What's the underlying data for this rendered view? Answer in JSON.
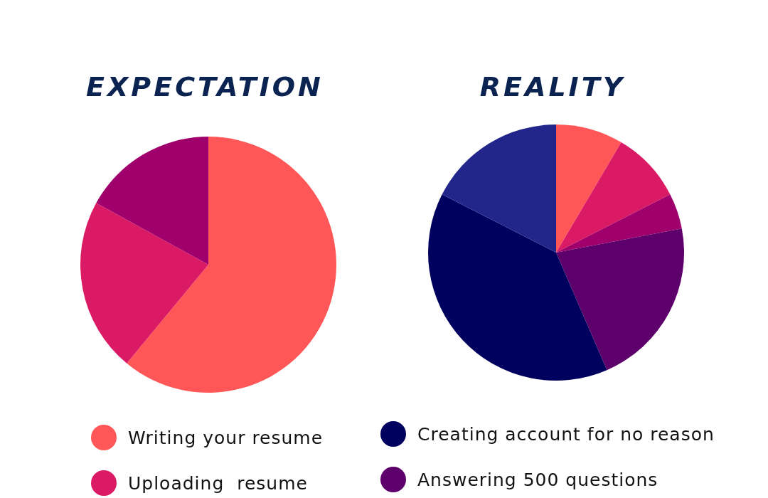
{
  "chart_data": [
    {
      "type": "pie",
      "title": "EXPECTATION",
      "categories": [
        "Writing your resume",
        "Uploading  resume",
        null
      ],
      "values": [
        61,
        22,
        17
      ],
      "colors": [
        "#ff5757",
        "#db1a66",
        "#a0006b"
      ],
      "legend": "bottom"
    },
    {
      "type": "pie",
      "title": "REALITY",
      "categories": [
        null,
        null,
        null,
        "Answering 500 questions",
        "Creating account for no reason",
        null
      ],
      "values": [
        8.5,
        9,
        4.5,
        21.5,
        39,
        17.5
      ],
      "colors": [
        "#ff5757",
        "#db1a66",
        "#a0006b",
        "#5e006b",
        "#00005f",
        "#22268a"
      ],
      "legend": "bottom"
    }
  ]
}
